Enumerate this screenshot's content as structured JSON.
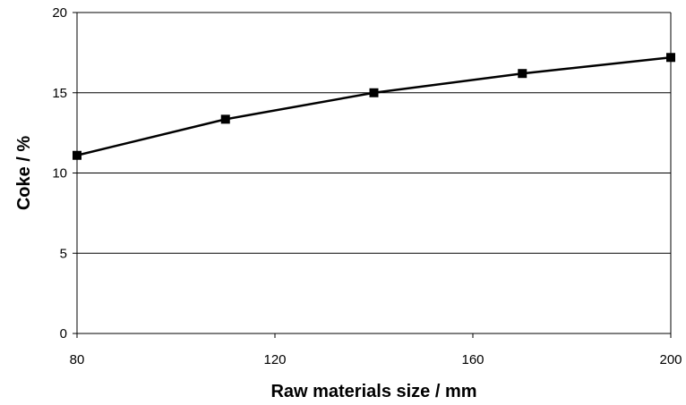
{
  "chart_data": {
    "type": "line",
    "title": "",
    "xlabel": "Raw materials size / mm",
    "ylabel": "Coke / %",
    "xlim": [
      80,
      200
    ],
    "ylim": [
      0,
      20
    ],
    "x_ticks": [
      80,
      120,
      160,
      200
    ],
    "y_ticks": [
      0,
      5,
      10,
      15,
      20
    ],
    "grid": "horizontal",
    "legend": "none",
    "marker": "square",
    "line_color": "#000000",
    "series": [
      {
        "x": [
          80,
          110,
          140,
          170,
          200
        ],
        "values": [
          11.1,
          13.35,
          15.0,
          16.2,
          17.2
        ]
      }
    ]
  }
}
